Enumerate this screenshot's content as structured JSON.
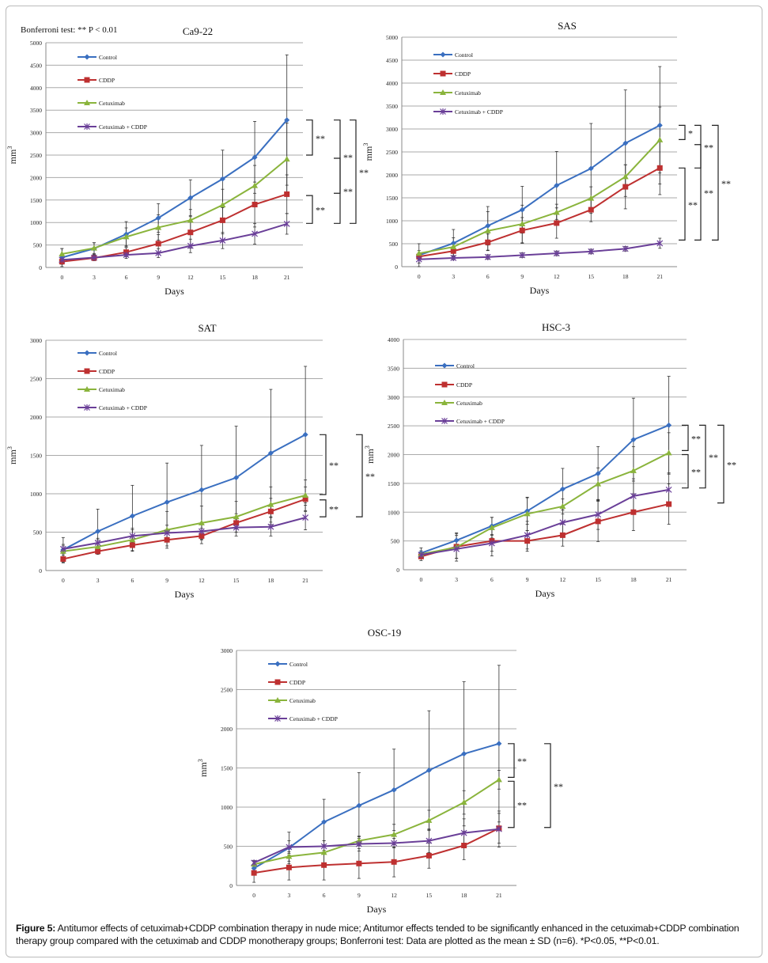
{
  "figure": {
    "note": "Bonferroni test:  ** P < 0.01",
    "caption_label": "Figure 5:",
    "caption_text": " Antitumor effects of cetuximab+CDDP combination therapy in nude mice; Antitumor effects tended to be significantly enhanced in the cetuximab+CDDP combination therapy group compared with the cetuximab and CDDP monotherapy groups; Bonferroni test: Data are plotted as the mean ± SD (n=6). *P<0.05, **P<0.01."
  },
  "colors": {
    "Control": "#3a6fc0",
    "CDDP": "#be3030",
    "Cetuximab": "#8ab43c",
    "Cetuximab + CDDP": "#6a3f98"
  },
  "chart_data": [
    {
      "id": "ca922",
      "type": "line",
      "title": "Ca9-22",
      "xlabel": "Days",
      "ylabel": "mm3",
      "x": [
        0,
        3,
        6,
        9,
        12,
        15,
        18,
        21
      ],
      "ylim": [
        0,
        5000
      ],
      "yticks": [
        0,
        500,
        1000,
        1500,
        2000,
        2500,
        3000,
        3500,
        4000,
        4500,
        5000
      ],
      "grid": true,
      "legend": "top-left",
      "series": [
        {
          "name": "Control",
          "values": [
            220,
            420,
            740,
            1100,
            1550,
            1970,
            2450,
            3280
          ],
          "sd": [
            200,
            130,
            280,
            320,
            400,
            640,
            800,
            1450
          ]
        },
        {
          "name": "CDDP",
          "values": [
            130,
            210,
            340,
            530,
            780,
            1050,
            1400,
            1630
          ],
          "sd": [
            60,
            60,
            100,
            200,
            350,
            300,
            500,
            430
          ]
        },
        {
          "name": "Cetuximab",
          "values": [
            300,
            430,
            680,
            890,
            1050,
            1390,
            1820,
            2410
          ],
          "sd": [
            120,
            120,
            200,
            280,
            240,
            350,
            450,
            800
          ]
        },
        {
          "name": "Cetuximab + CDDP",
          "values": [
            170,
            220,
            280,
            320,
            480,
            600,
            750,
            970
          ],
          "sd": [
            50,
            60,
            80,
            100,
            150,
            180,
            230,
            230
          ]
        }
      ],
      "significance": [
        {
          "label": "**",
          "from": 3280,
          "to": 2500
        },
        {
          "label": "**",
          "from": 1600,
          "to": 980
        },
        {
          "label": "**",
          "from": 3280,
          "to": 1650
        },
        {
          "label": "**",
          "from": 2430,
          "to": 980
        },
        {
          "label": "**",
          "from": 3280,
          "to": 980
        }
      ]
    },
    {
      "id": "sas",
      "type": "line",
      "title": "SAS",
      "xlabel": "Days",
      "ylabel": "mm3",
      "x": [
        0,
        3,
        6,
        9,
        12,
        15,
        18,
        21
      ],
      "ylim": [
        0,
        5000
      ],
      "yticks": [
        0,
        500,
        1000,
        1500,
        2000,
        2500,
        3000,
        3500,
        4000,
        4500,
        5000
      ],
      "grid": true,
      "legend": "top-left",
      "series": [
        {
          "name": "Control",
          "values": [
            250,
            510,
            890,
            1240,
            1770,
            2140,
            2690,
            3080
          ],
          "sd": [
            250,
            300,
            420,
            510,
            740,
            980,
            1160,
            1280
          ]
        },
        {
          "name": "CDDP",
          "values": [
            220,
            340,
            530,
            790,
            950,
            1240,
            1740,
            2150
          ],
          "sd": [
            60,
            100,
            180,
            280,
            330,
            260,
            480,
            580
          ]
        },
        {
          "name": "Cetuximab",
          "values": [
            290,
            430,
            780,
            930,
            1180,
            1490,
            1960,
            2760
          ],
          "sd": [
            60,
            200,
            420,
            410,
            180,
            250,
            260,
            720
          ]
        },
        {
          "name": "Cetuximab + CDDP",
          "values": [
            160,
            190,
            210,
            250,
            290,
            330,
            390,
            510
          ],
          "sd": [
            80,
            40,
            50,
            50,
            50,
            50,
            50,
            110
          ]
        }
      ],
      "significance": [
        {
          "label": "*",
          "from": 3080,
          "to": 2770
        },
        {
          "label": "**",
          "from": 2150,
          "to": 580
        },
        {
          "label": "**",
          "from": 3080,
          "to": 2150
        },
        {
          "label": "**",
          "from": 2660,
          "to": 580
        },
        {
          "label": "**",
          "from": 3080,
          "to": 580
        }
      ]
    },
    {
      "id": "sat",
      "type": "line",
      "title": "SAT",
      "xlabel": "Days",
      "ylabel": "mm3",
      "x": [
        0,
        3,
        6,
        9,
        12,
        15,
        18,
        21
      ],
      "ylim": [
        0,
        3000
      ],
      "yticks": [
        0,
        500,
        1000,
        1500,
        2000,
        2500,
        3000
      ],
      "grid": true,
      "legend": "top-left",
      "series": [
        {
          "name": "Control",
          "values": [
            270,
            510,
            710,
            890,
            1050,
            1210,
            1530,
            1770
          ],
          "sd": [
            160,
            290,
            400,
            510,
            580,
            670,
            830,
            890
          ]
        },
        {
          "name": "CDDP",
          "values": [
            150,
            250,
            330,
            400,
            450,
            620,
            770,
            930
          ],
          "sd": [
            50,
            40,
            70,
            80,
            100,
            120,
            170,
            160
          ]
        },
        {
          "name": "Cetuximab",
          "values": [
            250,
            310,
            400,
            530,
            620,
            700,
            860,
            980
          ],
          "sd": [
            70,
            90,
            150,
            240,
            220,
            200,
            230,
            200
          ]
        },
        {
          "name": "Cetuximab + CDDP",
          "values": [
            280,
            360,
            450,
            490,
            510,
            560,
            570,
            690
          ],
          "sd": [
            60,
            60,
            80,
            100,
            100,
            110,
            120,
            160
          ]
        }
      ],
      "significance": [
        {
          "label": "**",
          "from": 1770,
          "to": 990
        },
        {
          "label": "**",
          "from": 920,
          "to": 700
        },
        {
          "label": "**",
          "from": 1770,
          "to": 700
        }
      ]
    },
    {
      "id": "hsc3",
      "type": "line",
      "title": "HSC-3",
      "xlabel": "Days",
      "ylabel": "mm3",
      "x": [
        0,
        3,
        6,
        9,
        12,
        15,
        18,
        21
      ],
      "ylim": [
        0,
        4000
      ],
      "yticks": [
        0,
        500,
        1000,
        1500,
        2000,
        2500,
        3000,
        3500,
        4000
      ],
      "grid": true,
      "legend": "top-left",
      "series": [
        {
          "name": "Control",
          "values": [
            290,
            510,
            760,
            1020,
            1400,
            1670,
            2260,
            2510
          ],
          "sd": [
            90,
            130,
            150,
            230,
            360,
            470,
            720,
            850
          ]
        },
        {
          "name": "CDDP",
          "values": [
            230,
            400,
            500,
            500,
            600,
            840,
            1000,
            1140
          ],
          "sd": [
            70,
            200,
            260,
            180,
            190,
            350,
            320,
            350
          ]
        },
        {
          "name": "Cetuximab",
          "values": [
            270,
            390,
            730,
            970,
            1100,
            1490,
            1720,
            2030
          ],
          "sd": [
            60,
            240,
            180,
            290,
            130,
            280,
            420,
            350
          ]
        },
        {
          "name": "Cetuximab + CDDP",
          "values": [
            260,
            360,
            460,
            600,
            820,
            960,
            1280,
            1390
          ],
          "sd": [
            50,
            160,
            140,
            240,
            220,
            260,
            300,
            290
          ]
        }
      ],
      "significance": [
        {
          "label": "**",
          "from": 2510,
          "to": 2070
        },
        {
          "label": "**",
          "from": 2000,
          "to": 1420
        },
        {
          "label": "**",
          "from": 2510,
          "to": 1420
        },
        {
          "label": "**",
          "from": 2510,
          "to": 1160
        }
      ]
    },
    {
      "id": "osc19",
      "type": "line",
      "title": "OSC-19",
      "xlabel": "Days",
      "ylabel": "mm3",
      "x": [
        0,
        3,
        6,
        9,
        12,
        15,
        18,
        21
      ],
      "ylim": [
        0,
        3000
      ],
      "yticks": [
        0,
        500,
        1000,
        1500,
        2000,
        2500,
        3000
      ],
      "grid": true,
      "legend": "top-left",
      "series": [
        {
          "name": "Control",
          "values": [
            220,
            480,
            810,
            1020,
            1220,
            1470,
            1680,
            1810
          ],
          "sd": [
            60,
            200,
            290,
            420,
            520,
            760,
            920,
            1000
          ]
        },
        {
          "name": "CDDP",
          "values": [
            160,
            230,
            260,
            280,
            300,
            380,
            510,
            730
          ],
          "sd": [
            120,
            160,
            190,
            190,
            190,
            160,
            180,
            190
          ]
        },
        {
          "name": "Cetuximab",
          "values": [
            270,
            370,
            420,
            570,
            650,
            830,
            1060,
            1350
          ],
          "sd": [
            40,
            60,
            150,
            60,
            130,
            130,
            150,
            120
          ]
        },
        {
          "name": "Cetuximab + CDDP",
          "values": [
            290,
            490,
            500,
            530,
            540,
            570,
            670,
            720
          ],
          "sd": [
            30,
            80,
            70,
            90,
            60,
            150,
            180,
            230
          ]
        }
      ],
      "significance": [
        {
          "label": "**",
          "from": 1810,
          "to": 1380
        },
        {
          "label": "**",
          "from": 1330,
          "to": 740
        },
        {
          "label": "**",
          "from": 1810,
          "to": 740
        }
      ]
    }
  ]
}
